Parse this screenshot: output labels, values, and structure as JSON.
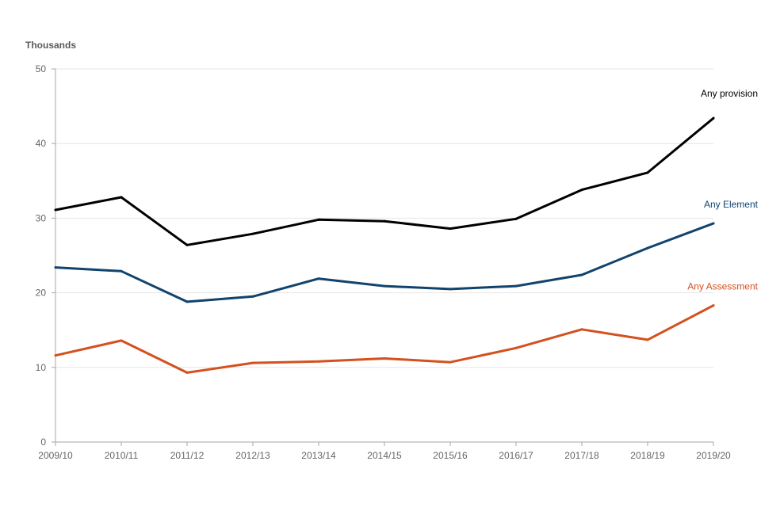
{
  "chart_data": {
    "type": "line",
    "title": "",
    "xlabel": "",
    "ylabel": "Thousands",
    "ylim": [
      0,
      50
    ],
    "yticks": [
      0,
      10,
      20,
      30,
      40,
      50
    ],
    "grid": true,
    "legend": "inline labels at line ends",
    "categories": [
      "2009/10",
      "2010/11",
      "2011/12",
      "2012/13",
      "2013/14",
      "2014/15",
      "2015/16",
      "2016/17",
      "2017/18",
      "2018/19",
      "2019/20"
    ],
    "series": [
      {
        "name": "Any provision",
        "color": "#000000",
        "values": [
          31.1,
          32.8,
          26.4,
          27.9,
          29.8,
          29.6,
          28.6,
          29.9,
          33.8,
          36.1,
          43.4
        ]
      },
      {
        "name": "Any Element",
        "color": "#12436d",
        "values": [
          23.4,
          22.9,
          18.8,
          19.5,
          21.9,
          20.9,
          20.5,
          20.9,
          22.4,
          26.0,
          29.3
        ]
      },
      {
        "name": "Any Assessment",
        "color": "#d4501e",
        "values": [
          11.6,
          13.6,
          9.3,
          10.6,
          10.8,
          11.2,
          10.7,
          12.6,
          15.1,
          13.7,
          18.3
        ]
      }
    ]
  }
}
